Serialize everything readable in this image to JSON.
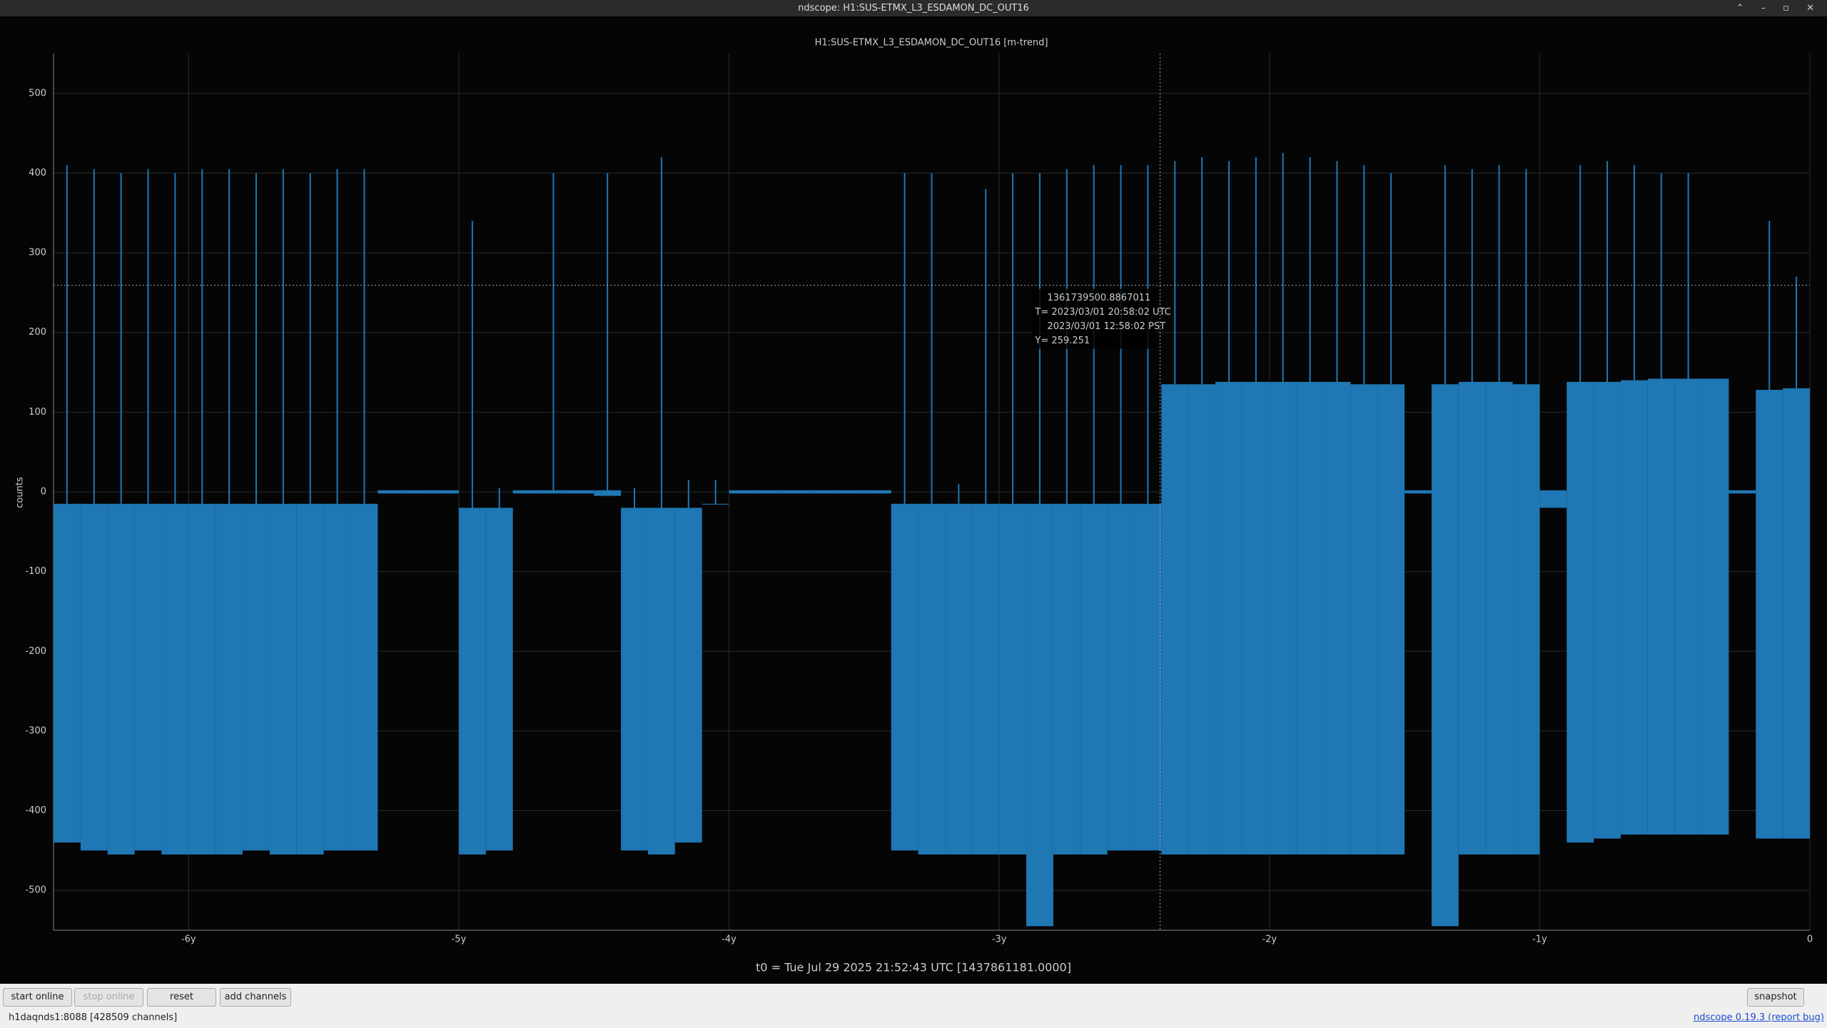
{
  "window": {
    "title": "ndscope: H1:SUS-ETMX_L3_ESDAMON_DC_OUT16"
  },
  "chart_data": {
    "type": "trend",
    "title": "H1:SUS-ETMX_L3_ESDAMON_DC_OUT16 [m-trend]",
    "y_label": "counts",
    "x_caption": "t0 = Tue Jul 29 2025 21:52:43 UTC [1437861181.0000]",
    "xlim": [
      -6.5,
      0
    ],
    "ylim": [
      -550,
      550
    ],
    "xticks": [
      {
        "value": -6,
        "label": "-6y"
      },
      {
        "value": -5,
        "label": "-5y"
      },
      {
        "value": -4,
        "label": "-4y"
      },
      {
        "value": -3,
        "label": "-3y"
      },
      {
        "value": -2,
        "label": "-2y"
      },
      {
        "value": -1,
        "label": "-1y"
      },
      0
    ],
    "yticks": [
      -500,
      -400,
      -300,
      -200,
      -100,
      0,
      100,
      200,
      300,
      400,
      500
    ],
    "grid": true,
    "x": [
      -6.45,
      -6.35,
      -6.25,
      -6.15,
      -6.05,
      -5.95,
      -5.85,
      -5.75,
      -5.65,
      -5.55,
      -5.45,
      -5.35,
      -5.25,
      -5.15,
      -5.05,
      -4.95,
      -4.85,
      -4.75,
      -4.65,
      -4.55,
      -4.45,
      -4.35,
      -4.25,
      -4.15,
      -4.05,
      -3.95,
      -3.85,
      -3.75,
      -3.65,
      -3.55,
      -3.45,
      -3.35,
      -3.25,
      -3.15,
      -3.05,
      -2.95,
      -2.85,
      -2.75,
      -2.65,
      -2.55,
      -2.45,
      -2.35,
      -2.25,
      -2.15,
      -2.05,
      -1.95,
      -1.85,
      -1.75,
      -1.65,
      -1.55,
      -1.45,
      -1.35,
      -1.25,
      -1.15,
      -1.05,
      -0.95,
      -0.85,
      -0.75,
      -0.65,
      -0.55,
      -0.45,
      -0.35,
      -0.25,
      -0.15,
      -0.05
    ],
    "series": [
      {
        "color": "#1f77b4",
        "values": [
          410,
          405,
          400,
          405,
          400,
          405,
          405,
          400,
          405,
          400,
          405,
          405,
          2,
          2,
          2,
          340,
          5,
          2,
          400,
          2,
          400,
          5,
          420,
          15,
          15,
          2,
          2,
          2,
          2,
          2,
          2,
          400,
          400,
          10,
          380,
          400,
          400,
          405,
          410,
          410,
          410,
          415,
          420,
          415,
          420,
          425,
          420,
          415,
          410,
          400,
          2,
          410,
          405,
          410,
          405,
          2,
          410,
          415,
          410,
          400,
          400,
          140,
          2,
          340,
          270
        ]
      },
      {
        "color": "#1f77b4",
        "values": [
          -15,
          -15,
          -15,
          -15,
          -15,
          -15,
          -15,
          -15,
          -15,
          -15,
          -15,
          -15,
          2,
          2,
          2,
          -20,
          -20,
          2,
          2,
          2,
          2,
          -20,
          -20,
          -20,
          -15,
          2,
          2,
          2,
          2,
          2,
          2,
          -15,
          -15,
          -15,
          -15,
          -15,
          -15,
          -15,
          -15,
          -15,
          -15,
          135,
          135,
          138,
          138,
          138,
          138,
          138,
          135,
          135,
          2,
          135,
          138,
          138,
          135,
          2,
          138,
          138,
          140,
          142,
          142,
          142,
          2,
          128,
          130
        ]
      },
      {
        "color": "#1f77b4",
        "values": [
          -440,
          -450,
          -455,
          -450,
          -455,
          -455,
          -455,
          -450,
          -455,
          -455,
          -450,
          -450,
          -2,
          -2,
          -2,
          -455,
          -450,
          -2,
          -2,
          -2,
          -5,
          -450,
          -455,
          -440,
          -15,
          -2,
          -2,
          -2,
          -2,
          -2,
          -2,
          -450,
          -455,
          -455,
          -455,
          -455,
          -545,
          -455,
          -455,
          -450,
          -450,
          -455,
          -455,
          -455,
          -455,
          -455,
          -455,
          -455,
          -455,
          -455,
          -2,
          -545,
          -455,
          -455,
          -455,
          -20,
          -440,
          -435,
          -430,
          -430,
          -430,
          -430,
          -2,
          -435,
          -435
        ]
      }
    ],
    "cursor": {
      "x": -2.405,
      "y": 259.251,
      "lines": [
        "1361739500.8867011",
        "T= 2023/03/01 20:58:02 UTC",
        "2023/03/01 12:58:02 PST",
        "Y= 259.251"
      ]
    }
  },
  "toolbar": {
    "buttons": [
      "start online",
      "stop online",
      "reset",
      "add channels",
      "snapshot"
    ]
  },
  "status": {
    "server": "h1daqnds1:8088  [428509 channels]",
    "version": "ndscope 0.19.3",
    "report": "(report bug)"
  }
}
